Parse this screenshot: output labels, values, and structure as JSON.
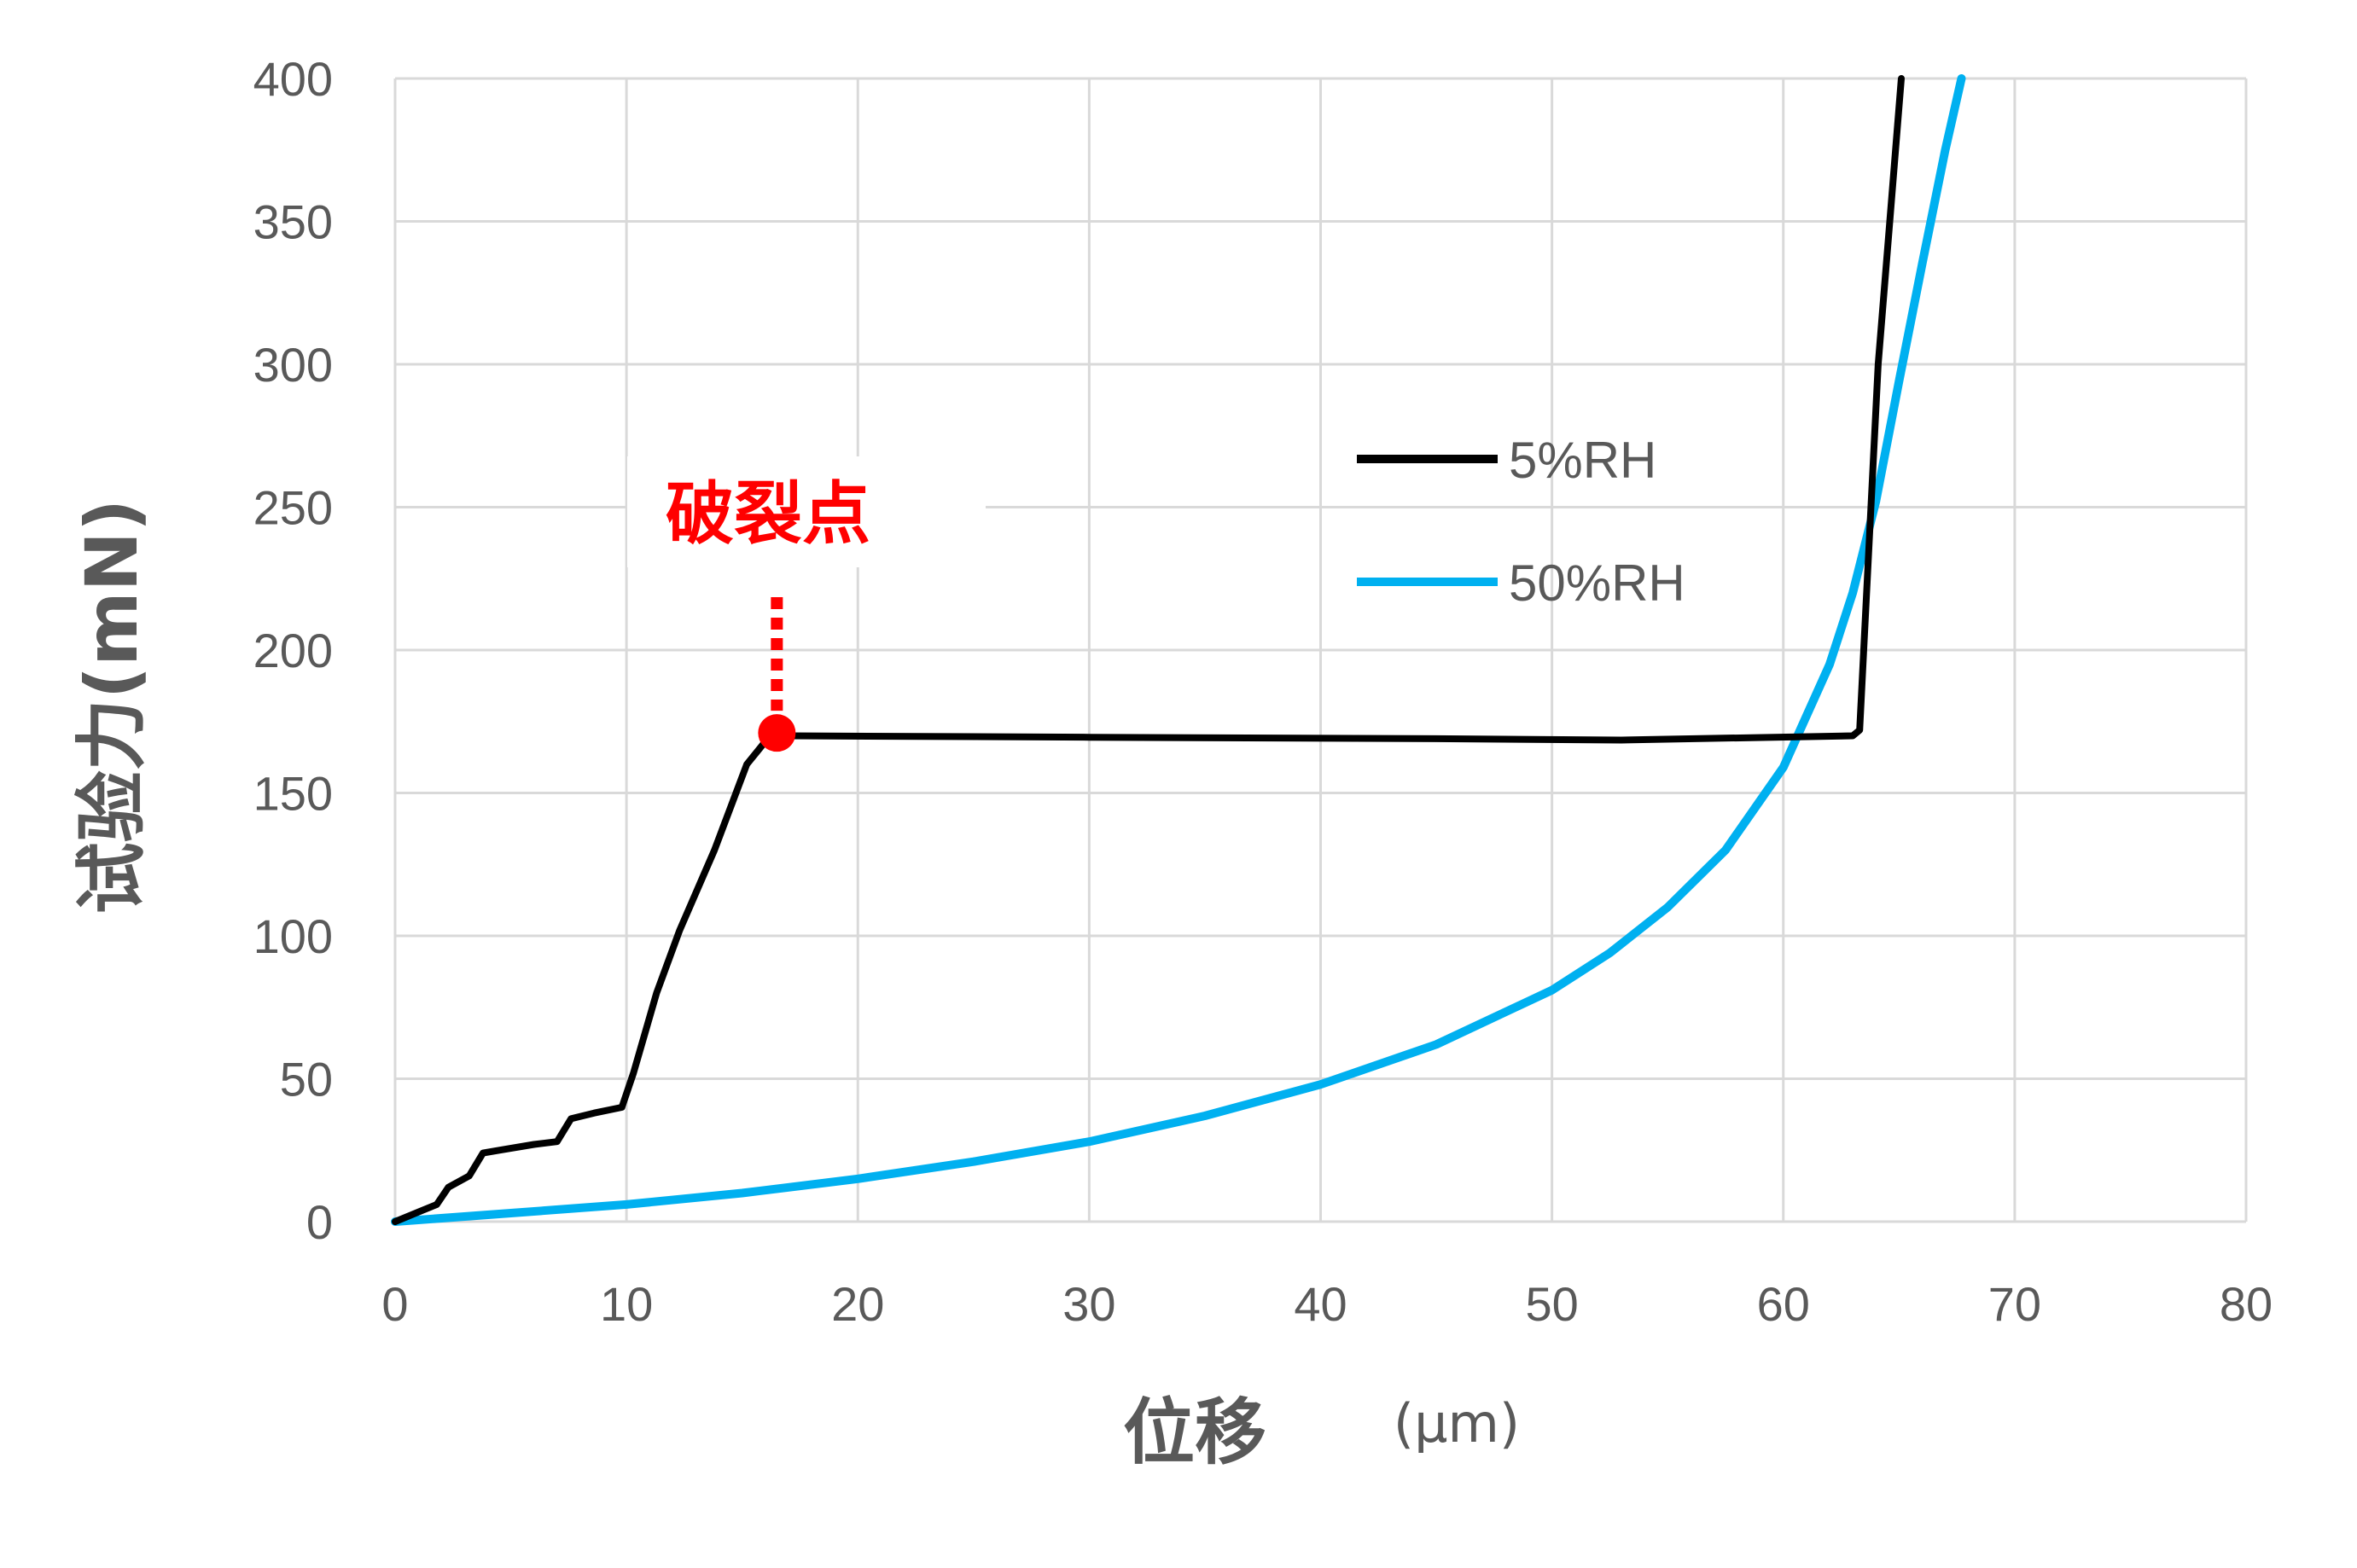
{
  "chart_data": {
    "type": "line",
    "xlabel": "位移",
    "xunit": "(μm)",
    "ylabel": "试验力(mN)",
    "xlim": [
      0,
      80
    ],
    "ylim": [
      0,
      400
    ],
    "xticks": [
      0,
      10,
      20,
      30,
      40,
      50,
      60,
      70,
      80
    ],
    "yticks": [
      0,
      50,
      100,
      150,
      200,
      250,
      300,
      350,
      400
    ],
    "grid": true,
    "legend_position": "center-right",
    "series": [
      {
        "name": "5%RH",
        "color": "#000000",
        "points": [
          [
            0,
            0
          ],
          [
            1.2,
            4
          ],
          [
            1.8,
            6
          ],
          [
            2.3,
            12
          ],
          [
            3.2,
            16
          ],
          [
            3.8,
            24
          ],
          [
            4.5,
            25
          ],
          [
            6,
            27
          ],
          [
            7,
            28
          ],
          [
            7.6,
            36
          ],
          [
            8.6,
            38
          ],
          [
            9.8,
            40
          ],
          [
            10.3,
            52
          ],
          [
            11.3,
            80
          ],
          [
            12.3,
            102
          ],
          [
            13.8,
            130
          ],
          [
            15.2,
            160
          ],
          [
            16,
            168
          ],
          [
            16.4,
            170
          ],
          [
            17,
            170
          ],
          [
            30,
            169.5
          ],
          [
            45,
            169
          ],
          [
            53,
            168.5
          ],
          [
            63,
            170
          ],
          [
            63.3,
            172
          ],
          [
            64.1,
            300
          ],
          [
            64.6,
            350
          ],
          [
            65.1,
            400
          ]
        ]
      },
      {
        "name": "50%RH",
        "color": "#00b0f0",
        "points": [
          [
            0,
            0
          ],
          [
            5,
            3
          ],
          [
            10,
            6
          ],
          [
            15,
            10
          ],
          [
            20,
            15
          ],
          [
            25,
            21
          ],
          [
            30,
            28
          ],
          [
            35,
            37
          ],
          [
            40,
            48
          ],
          [
            45,
            62
          ],
          [
            50,
            81
          ],
          [
            52.5,
            94
          ],
          [
            55,
            110
          ],
          [
            57.5,
            130
          ],
          [
            60,
            159
          ],
          [
            62,
            195
          ],
          [
            63,
            220
          ],
          [
            64,
            252
          ],
          [
            65,
            294
          ],
          [
            66,
            335
          ],
          [
            67,
            375
          ],
          [
            67.7,
            400
          ]
        ]
      }
    ],
    "annotation": {
      "text": "破裂点",
      "point": [
        16.5,
        171
      ],
      "color": "#ff0000"
    }
  }
}
